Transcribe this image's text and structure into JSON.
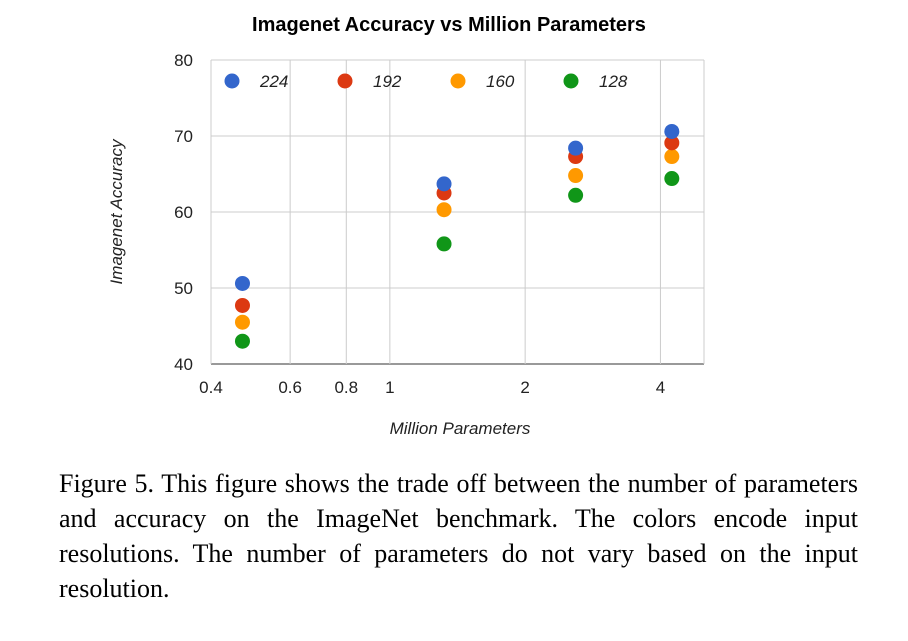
{
  "chart_data": {
    "type": "scatter",
    "title": "Imagenet Accuracy vs Million Parameters",
    "xlabel": "Million Parameters",
    "ylabel": "Imagenet Accuracy",
    "x_scale": "log",
    "xlim": [
      0.4,
      5.0
    ],
    "ylim": [
      40,
      80
    ],
    "x_ticks": [
      0.4,
      0.6,
      0.8,
      1,
      2,
      4
    ],
    "x_tick_labels": [
      "0.4",
      "0.6",
      "0.8",
      "1",
      "2",
      "4"
    ],
    "y_ticks": [
      40,
      50,
      60,
      70,
      80
    ],
    "y_tick_labels": [
      "40",
      "50",
      "60",
      "70",
      "80"
    ],
    "grid": true,
    "legend_position": "top",
    "series": [
      {
        "name": "224",
        "color": "#3366cc",
        "x": [
          0.47,
          1.32,
          2.59,
          4.24
        ],
        "y": [
          50.6,
          63.7,
          68.4,
          70.6
        ]
      },
      {
        "name": "192",
        "color": "#dc3912",
        "x": [
          0.47,
          1.32,
          2.59,
          4.24
        ],
        "y": [
          47.7,
          62.5,
          67.3,
          69.1
        ]
      },
      {
        "name": "160",
        "color": "#ff9900",
        "x": [
          0.47,
          1.32,
          2.59,
          4.24
        ],
        "y": [
          45.5,
          60.3,
          64.8,
          67.3
        ]
      },
      {
        "name": "128",
        "color": "#109618",
        "x": [
          0.47,
          1.32,
          2.59,
          4.24
        ],
        "y": [
          43.0,
          55.8,
          62.2,
          64.4
        ]
      }
    ]
  },
  "caption": "Figure 5. This figure shows the trade off between the number of parameters and accuracy on the ImageNet benchmark. The colors encode input resolutions. The number of parameters do not vary based on the input resolution."
}
